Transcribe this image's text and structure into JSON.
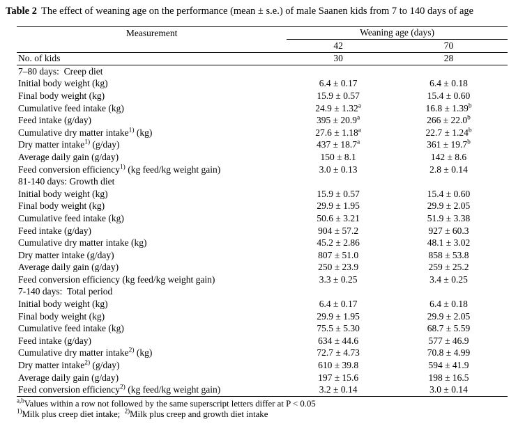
{
  "caption": {
    "label": "Table 2",
    "text": "The effect of weaning age on the performance (mean ± s.e.) of male Saanen kids from 7 to 140 days of age"
  },
  "table": {
    "measurement_header": "Measurement",
    "group_header": "Weaning age (days)",
    "col_headers": [
      "42",
      "70"
    ],
    "kids_row": {
      "label": "No. of kids",
      "values": [
        "30",
        "28"
      ]
    },
    "sections": [
      {
        "header": "7–80 days:  Creep diet",
        "rows": [
          {
            "label": "Initial body weight (kg)",
            "values": [
              "6.4 ± 0.17",
              "6.4 ± 0.18"
            ]
          },
          {
            "label": "Final body weight (kg)",
            "values": [
              "15.9 ± 0.57",
              "15.4 ± 0.60"
            ]
          },
          {
            "label": "Cumulative feed intake (kg)",
            "values": [
              "24.9 ± 1.32^{a}",
              "16.8 ± 1.39^{b}"
            ]
          },
          {
            "label": "Feed intake (g/day)",
            "values": [
              "395 ± 20.9^{a}",
              "266 ± 22.0^{b}"
            ]
          },
          {
            "label": "Cumulative dry matter intake^{1)} (kg)",
            "values": [
              "27.6 ± 1.18^{a}",
              "22.7 ± 1.24^{b}"
            ]
          },
          {
            "label": "Dry matter intake^{1)} (g/day)",
            "values": [
              "437 ± 18.7^{a}",
              "361 ± 19.7^{b}"
            ]
          },
          {
            "label": "Average daily gain (g/day)",
            "values": [
              "150 ± 8.1",
              "142 ± 8.6"
            ]
          },
          {
            "label": "Feed conversion efficiency^{1)} (kg feed/kg weight gain)",
            "values": [
              "3.0 ± 0.13",
              "2.8 ± 0.14"
            ]
          }
        ]
      },
      {
        "header": "81-140 days: Growth diet",
        "rows": [
          {
            "label": "Initial body weight (kg)",
            "values": [
              "15.9 ± 0.57",
              "15.4 ± 0.60"
            ]
          },
          {
            "label": "Final body weight (kg)",
            "values": [
              "29.9 ± 1.95",
              "29.9 ± 2.05"
            ]
          },
          {
            "label": "Cumulative feed intake (kg)",
            "values": [
              "50.6 ± 3.21",
              "51.9 ± 3.38"
            ]
          },
          {
            "label": "Feed intake (g/day)",
            "values": [
              "904 ± 57.2",
              "927 ± 60.3"
            ]
          },
          {
            "label": "Cumulative dry matter intake (kg)",
            "values": [
              "45.2 ± 2.86",
              "48.1 ± 3.02"
            ]
          },
          {
            "label": "Dry matter intake (g/day)",
            "values": [
              "807 ± 51.0",
              "858 ± 53.8"
            ]
          },
          {
            "label": "Average daily gain (g/day)",
            "values": [
              "250 ± 23.9",
              "259 ± 25.2"
            ]
          },
          {
            "label": "Feed conversion efficiency (kg feed/kg weight gain)",
            "values": [
              "3.3 ± 0.25",
              "3.4 ± 0.25"
            ]
          }
        ]
      },
      {
        "header": "7-140 days:  Total period",
        "rows": [
          {
            "label": "Initial body weight (kg)",
            "values": [
              "6.4 ± 0.17",
              "6.4 ± 0.18"
            ]
          },
          {
            "label": "Final body weight (kg)",
            "values": [
              "29.9 ± 1.95",
              "29.9 ± 2.05"
            ]
          },
          {
            "label": "Cumulative feed intake (kg)",
            "values": [
              "75.5 ± 5.30",
              "68.7 ± 5.59"
            ]
          },
          {
            "label": "Feed intake (g/day)",
            "values": [
              "634 ± 44.6",
              "577 ± 46.9"
            ]
          },
          {
            "label": "Cumulative dry matter intake^{2)} (kg)",
            "values": [
              "72.7 ± 4.73",
              "70.8 ± 4.99"
            ]
          },
          {
            "label": "Dry matter intake^{2)} (g/day)",
            "values": [
              "610 ± 39.8",
              "594 ± 41.9"
            ]
          },
          {
            "label": "Average daily gain (g/day)",
            "values": [
              "197 ± 15.6",
              "198 ± 16.5"
            ]
          },
          {
            "label": "Feed conversion efficiency^{2)} (kg feed/kg weight gain)",
            "values": [
              "3.2 ± 0.14",
              "3.0 ± 0.14"
            ]
          }
        ]
      }
    ]
  },
  "footnotes": [
    "^{a,b}Values within a row not followed by the same superscript letters differ at P < 0.05",
    "^{1)}Milk plus creep diet intake;  ^{2)}Milk plus creep and growth diet intake"
  ]
}
